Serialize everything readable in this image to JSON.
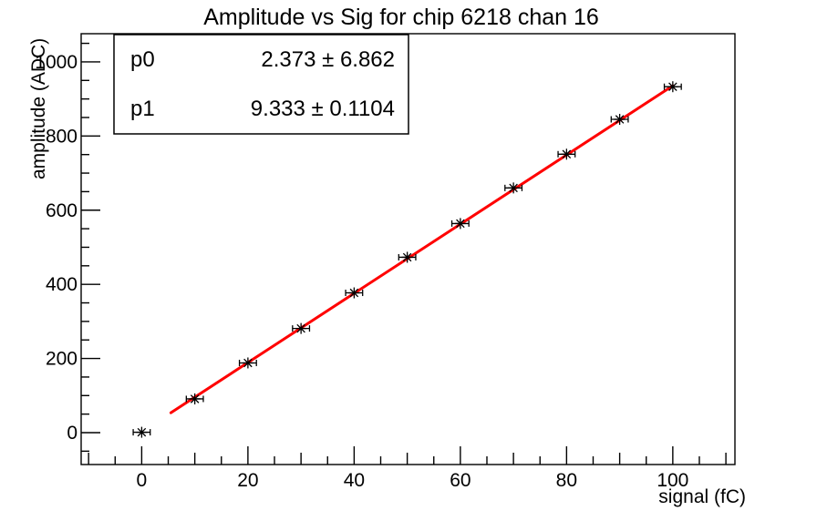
{
  "title": "Amplitude vs Sig for chip 6218 chan 16",
  "stats_box": {
    "rows": [
      {
        "label": "p0",
        "text": "2.373 ± 6.862"
      },
      {
        "label": "p1",
        "text": "9.333 ± 0.1104"
      }
    ]
  },
  "chart_data": {
    "type": "scatter",
    "title": "Amplitude vs Sig for chip 6218 chan 16",
    "xlabel": "signal (fC)",
    "ylabel": "amplitude (ADC)",
    "xlim": [
      -11.4,
      111.7
    ],
    "ylim": [
      -86,
      1076
    ],
    "x_major_ticks": [
      0,
      20,
      40,
      60,
      80,
      100
    ],
    "x_tick_labels": [
      "0",
      "20",
      "40",
      "60",
      "80",
      "100"
    ],
    "x_minor_step": 5,
    "y_major_ticks": [
      0,
      200,
      400,
      600,
      800,
      1000
    ],
    "y_tick_labels": [
      "0",
      "200",
      "400",
      "600",
      "800",
      "1000"
    ],
    "y_minor_step": 50,
    "grid": false,
    "legend": "none",
    "marker": "asterisk",
    "marker_color": "#000000",
    "frame_color": "#000000",
    "background_color": "#ffffff",
    "points": {
      "x": [
        0,
        10,
        20,
        30,
        40,
        50,
        60,
        70,
        80,
        90,
        100
      ],
      "y": [
        1,
        91,
        188,
        281,
        377,
        473,
        564,
        660,
        751,
        845,
        933
      ],
      "xerr": 1.6
    },
    "fit": {
      "p0": 2.373,
      "p0_err": 6.862,
      "p1": 9.333,
      "p1_err": 0.1104,
      "x_start": 5.5,
      "x_end": 100,
      "color": "#ff0000"
    }
  }
}
